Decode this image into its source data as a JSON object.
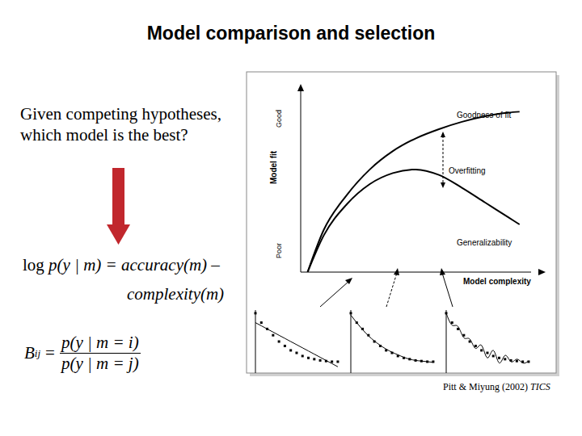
{
  "slide": {
    "title": "Model comparison and selection",
    "question": "Given competing hypotheses, which model is the best?",
    "formula": [
      "log p(y | m) = accuracy(m) –",
      "complexity(m)"
    ],
    "bayes_factor": {
      "symbol": "B",
      "subscript": "ij",
      "relation": "=",
      "numerator": "p(y | m = i)",
      "denominator": "p(y | m = j)"
    },
    "citation": {
      "text": "Pitt & Miyung (2002)",
      "journal": "TICS"
    }
  },
  "chart_data": {
    "type": "line",
    "xlabel": "Model complexity",
    "ylabel": "Model fit",
    "y_end_labels": [
      "Good",
      "Poor"
    ],
    "annotations": [
      "Goodness of fit",
      "Overfitting",
      "Generalizability"
    ],
    "tick_labels": false,
    "xlim": [
      0,
      10
    ],
    "ylim": [
      0,
      10
    ],
    "x": [
      0.3,
      1,
      2,
      3,
      4,
      5,
      6,
      7,
      8,
      9,
      9.5
    ],
    "series": [
      {
        "name": "Goodness of fit",
        "color": "#000000",
        "values": [
          0,
          2.3,
          4.2,
          5.6,
          6.6,
          7.3,
          7.8,
          8.2,
          8.5,
          8.7,
          8.75
        ]
      },
      {
        "name": "Generalizability",
        "color": "#000000",
        "values": [
          0,
          2,
          3.7,
          4.8,
          5.4,
          5.6,
          5.3,
          4.6,
          3.8,
          3.0,
          2.6
        ]
      }
    ],
    "insets": [
      {
        "x": [
          0,
          0.7,
          1.4,
          2.1,
          2.8,
          3.5,
          4.2,
          4.9,
          5.6,
          6.3,
          7,
          7.7,
          8.4,
          9.1,
          9.8
        ],
        "points": [
          9.5,
          8,
          7,
          6,
          5,
          4.3,
          3.6,
          3.2,
          2.7,
          2.4,
          2.2,
          2,
          1.9,
          1.8,
          1.8
        ],
        "fit": [
          8,
          7.5,
          7,
          6.5,
          6,
          5.5,
          5,
          4.5,
          4,
          3.5,
          3,
          2.5,
          2,
          1.5,
          1
        ],
        "line_style": "solid"
      },
      {
        "x": [
          0,
          0.7,
          1.4,
          2.1,
          2.8,
          3.5,
          4.2,
          4.9,
          5.6,
          6.3,
          7,
          7.7,
          8.4,
          9.1,
          9.8
        ],
        "points": [
          9.5,
          8,
          7,
          6,
          5,
          4.3,
          3.6,
          3.2,
          2.7,
          2.4,
          2.2,
          2,
          1.9,
          1.8,
          1.8
        ],
        "fit": [
          9.2,
          8,
          6.9,
          5.9,
          5.1,
          4.4,
          3.8,
          3.3,
          2.9,
          2.5,
          2.2,
          2,
          1.9,
          1.8,
          1.7
        ],
        "line_style": "solid"
      },
      {
        "x": [
          0,
          0.7,
          1.4,
          2.1,
          2.8,
          3.5,
          4.2,
          4.9,
          5.6,
          6.3,
          7,
          7.7,
          8.4,
          9.1,
          9.8
        ],
        "points": [
          9.5,
          8,
          7,
          6,
          5,
          4.3,
          3.6,
          3.2,
          2.7,
          2.4,
          2.2,
          2,
          1.9,
          1.8,
          1.8
        ],
        "fit": [
          9.5,
          7.6,
          7.4,
          5.6,
          5.4,
          3.9,
          4.4,
          2.4,
          3.6,
          1.6,
          2.8,
          1.8,
          2.2,
          1.6,
          1.9
        ],
        "line_style": "solid"
      }
    ],
    "inset_ylim": [
      0,
      10
    ]
  }
}
